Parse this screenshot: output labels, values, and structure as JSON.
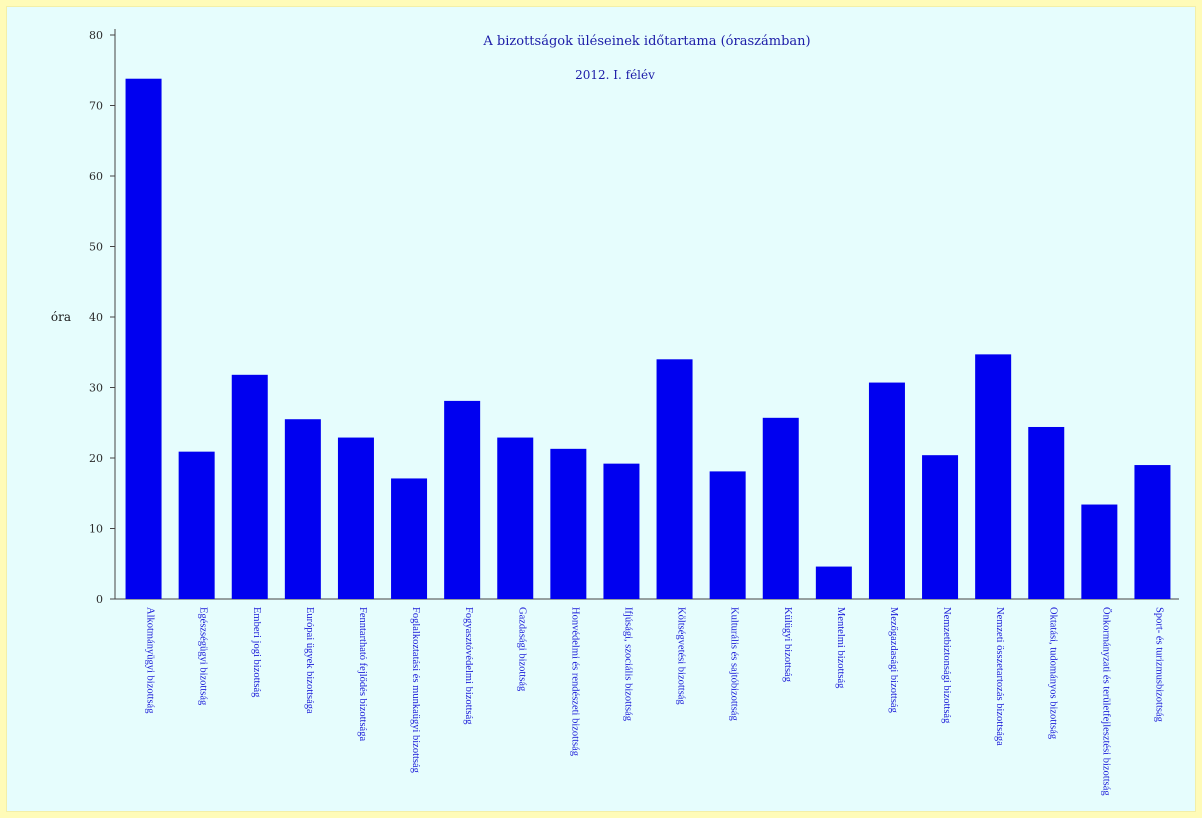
{
  "chart_data": {
    "type": "bar",
    "title": "A bizottságok üléseinek időtartama (óraszámban)",
    "subtitle": "2012. I. félév",
    "xlabel": "",
    "ylabel": "óra",
    "ylim": [
      0,
      80
    ],
    "yticks": [
      0,
      10,
      20,
      30,
      40,
      50,
      60,
      70,
      80
    ],
    "grid": false,
    "legend": "none",
    "bar_color": "#0000f0",
    "categories": [
      "Alkotmányügyi bizottság",
      "Egészségügyi bizottság",
      "Emberi jogi bizottság",
      "Európai ügyek bizottsága",
      "Fenntartható fejlődés bizottsága",
      "Foglalkoztatási és munkaügyi bizottság",
      "Fogyasztóvédelmi bizottság",
      "Gazdasági bizottság",
      "Honvédelmi és rendészeti bizottság",
      "Ifjúsági, szociális bizottság",
      "Költségvetési bizottság",
      "Kulturális és sajtóbizottság",
      "Külügyi bizottság",
      "Mentelmi bizottság",
      "Mezőgazdasági bizottság",
      "Nemzetbiztonsági bizottság",
      "Nemzeti összetartozás bizottsága",
      "Oktatási, tudományos bizottság",
      "Önkormányzati és területfejlesztési bizottság",
      "Sport- és turizmusbizottság"
    ],
    "values": [
      73.8,
      20.9,
      31.8,
      25.5,
      22.9,
      17.1,
      28.1,
      22.9,
      21.3,
      19.2,
      34.0,
      18.1,
      25.7,
      4.6,
      30.7,
      20.4,
      34.7,
      24.4,
      13.4,
      19.0
    ]
  }
}
